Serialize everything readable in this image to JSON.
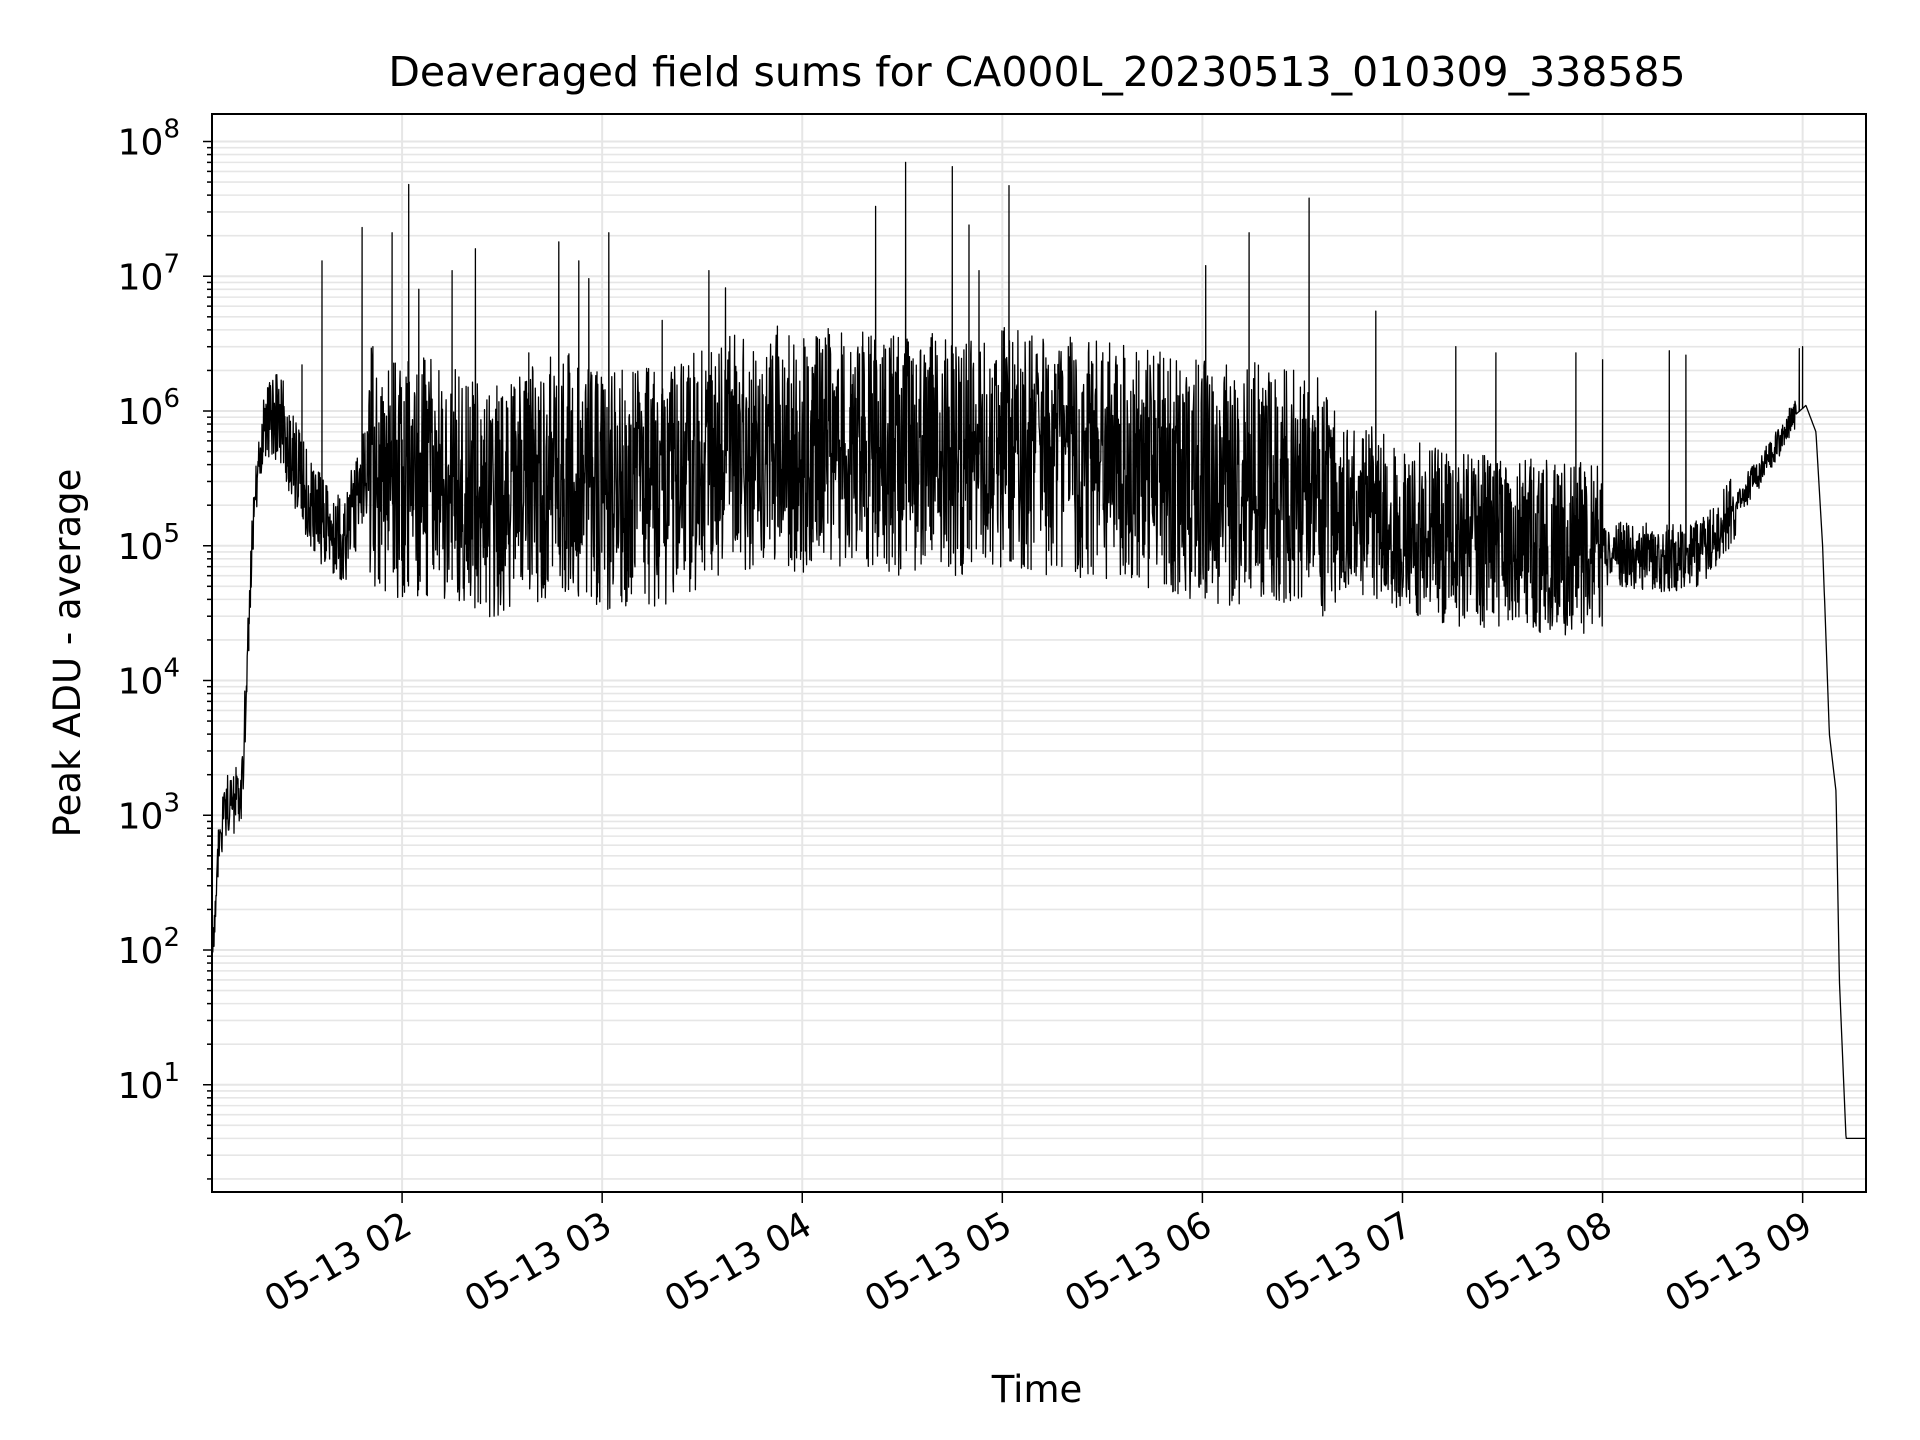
{
  "chart_data": {
    "type": "line",
    "title": "Deaveraged field sums for CA000L_20230513_010309_338585",
    "xlabel": "Time",
    "ylabel": "Peak ADU - average",
    "yscale": "log",
    "ylim": [
      1.6,
      160000000
    ],
    "xlim": [
      "05-13 01:03",
      "05-13 09:19"
    ],
    "grid": true,
    "line_color": "#000000",
    "grid_color": "#e6e6e6",
    "x_tick_labels": [
      "05-13 02",
      "05-13 03",
      "05-13 04",
      "05-13 05",
      "05-13 06",
      "05-13 07",
      "05-13 08",
      "05-13 09"
    ],
    "y_tick_labels": [
      {
        "base": "10",
        "exp": "1"
      },
      {
        "base": "10",
        "exp": "2"
      },
      {
        "base": "10",
        "exp": "3"
      },
      {
        "base": "10",
        "exp": "4"
      },
      {
        "base": "10",
        "exp": "5"
      },
      {
        "base": "10",
        "exp": "6"
      },
      {
        "base": "10",
        "exp": "7"
      },
      {
        "base": "10",
        "exp": "8"
      }
    ],
    "x": [
      "01:03",
      "01:05",
      "01:08",
      "01:10",
      "01:12",
      "01:15",
      "01:18",
      "01:20",
      "01:24",
      "01:30",
      "01:36",
      "01:43",
      "01:50",
      "02:00",
      "02:10",
      "02:20",
      "02:30",
      "02:40",
      "02:50",
      "03:00",
      "03:10",
      "03:20",
      "03:30",
      "03:40",
      "03:50",
      "04:00",
      "04:10",
      "04:20",
      "04:30",
      "04:40",
      "04:50",
      "05:00",
      "05:10",
      "05:20",
      "05:30",
      "05:40",
      "05:50",
      "06:00",
      "06:10",
      "06:20",
      "06:30",
      "06:40",
      "06:50",
      "07:00",
      "07:10",
      "07:20",
      "07:30",
      "07:40",
      "07:50",
      "08:00",
      "08:10",
      "08:20",
      "08:30",
      "08:40",
      "08:50",
      "08:57",
      "09:01",
      "09:04",
      "09:06",
      "09:08",
      "09:10",
      "09:11",
      "09:13",
      "09:19"
    ],
    "y": [
      80,
      600,
      1200,
      1300,
      1500,
      120000,
      700000,
      900000,
      800000,
      300000,
      150000,
      120000,
      400000,
      300000,
      350000,
      250000,
      200000,
      300000,
      350000,
      250000,
      300000,
      250000,
      400000,
      500000,
      550000,
      500000,
      550000,
      500000,
      450000,
      500000,
      450000,
      550000,
      500000,
      450000,
      450000,
      400000,
      350000,
      300000,
      280000,
      300000,
      250000,
      200000,
      180000,
      150000,
      120000,
      110000,
      100000,
      100000,
      95000,
      90000,
      85000,
      80000,
      90000,
      200000,
      450000,
      900000,
      1100000,
      700000,
      100000,
      4000,
      1500,
      60,
      4,
      4
    ],
    "peaks": [
      {
        "x": "01:14",
        "y": 25000
      },
      {
        "x": "01:30",
        "y": 2200000
      },
      {
        "x": "01:36",
        "y": 13000000
      },
      {
        "x": "01:48",
        "y": 23000000
      },
      {
        "x": "01:57",
        "y": 21000000
      },
      {
        "x": "02:02",
        "y": 48000000
      },
      {
        "x": "02:05",
        "y": 8000000
      },
      {
        "x": "02:15",
        "y": 11000000
      },
      {
        "x": "02:22",
        "y": 16000000
      },
      {
        "x": "02:38",
        "y": 2700000
      },
      {
        "x": "02:47",
        "y": 18000000
      },
      {
        "x": "02:53",
        "y": 13000000
      },
      {
        "x": "02:56",
        "y": 9600000
      },
      {
        "x": "03:02",
        "y": 21000000
      },
      {
        "x": "03:18",
        "y": 4700000
      },
      {
        "x": "03:32",
        "y": 11000000
      },
      {
        "x": "03:37",
        "y": 8200000
      },
      {
        "x": "03:51",
        "y": 2400000
      },
      {
        "x": "04:03",
        "y": 2100000
      },
      {
        "x": "04:18",
        "y": 3000000
      },
      {
        "x": "04:22",
        "y": 33000000
      },
      {
        "x": "04:31",
        "y": 70000000
      },
      {
        "x": "04:45",
        "y": 65000000
      },
      {
        "x": "04:50",
        "y": 24000000
      },
      {
        "x": "04:53",
        "y": 11000000
      },
      {
        "x": "05:02",
        "y": 47000000
      },
      {
        "x": "06:01",
        "y": 12000000
      },
      {
        "x": "06:14",
        "y": 21000000
      },
      {
        "x": "06:32",
        "y": 38000000
      },
      {
        "x": "06:52",
        "y": 5500000
      },
      {
        "x": "07:16",
        "y": 3000000
      },
      {
        "x": "07:28",
        "y": 2700000
      },
      {
        "x": "07:52",
        "y": 2700000
      },
      {
        "x": "08:00",
        "y": 2400000
      },
      {
        "x": "08:20",
        "y": 2800000
      },
      {
        "x": "08:25",
        "y": 2600000
      },
      {
        "x": "08:59",
        "y": 2900000
      },
      {
        "x": "09:00",
        "y": 3000000
      }
    ]
  }
}
